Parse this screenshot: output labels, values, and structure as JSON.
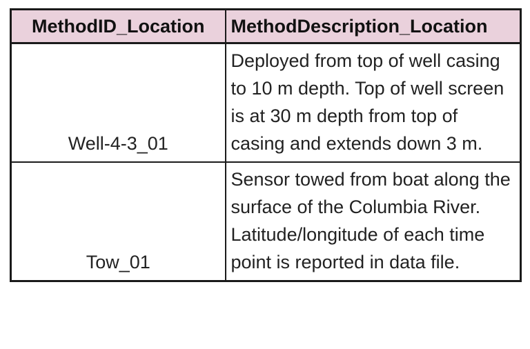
{
  "table": {
    "headers": [
      "MethodID_Location",
      "MethodDescription_Location"
    ],
    "rows": [
      {
        "id": "Well-4-3_01",
        "description": "Deployed from top of well casing to 10 m depth. Top of well screen is at 30 m depth from top of casing and extends down 3 m."
      },
      {
        "id": "Tow_01",
        "description": "Sensor towed from boat along the surface of the Columbia River. Latitude/longitude of each time point is reported in data file."
      }
    ],
    "header_color": "#ead1dc",
    "border_color": "#1a1a1a"
  }
}
